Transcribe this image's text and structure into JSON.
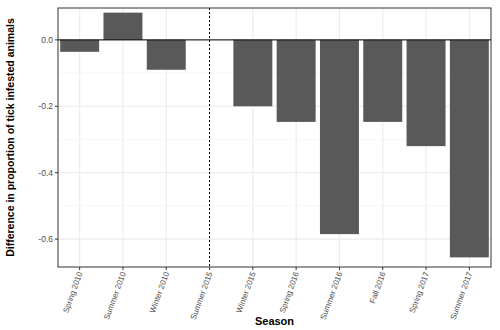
{
  "chart_data": {
    "type": "bar",
    "x_label": "Season",
    "y_label": "Difference in proportion of tick infested animals",
    "categories": [
      "Spring 2010",
      "Summer 2010",
      "Winter 2010",
      "Summer 2015",
      "Winter 2015",
      "Spring 2016",
      "Summer 2016",
      "Fall 2016",
      "Spring 2017",
      "Summer 2017"
    ],
    "values": [
      -0.036,
      0.082,
      -0.09,
      null,
      -0.2,
      -0.247,
      -0.585,
      -0.247,
      -0.32,
      -0.655
    ],
    "color": "#595959",
    "ylim": [
      -0.684,
      0.096
    ],
    "yticks": [
      -0.6,
      -0.4,
      -0.2,
      {
        "value": 0,
        "label": "0.0"
      }
    ],
    "grid": true
  }
}
